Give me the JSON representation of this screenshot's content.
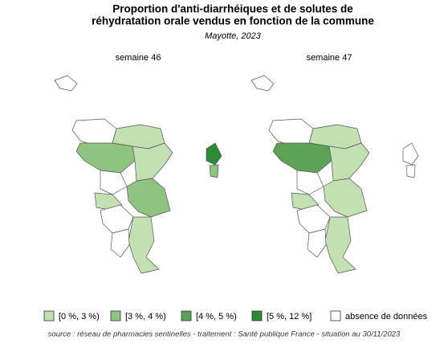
{
  "title_lines": [
    "Proportion d'anti-diarrhéiques et de solutes de",
    "réhydratation orale vendus en fonction de la commune"
  ],
  "subtitle": "Mayotte, 2023",
  "panels": [
    {
      "title": "semaine 46"
    },
    {
      "title": "semaine 47"
    }
  ],
  "legend": [
    {
      "label": "[0 %, 3 %)",
      "color": "#c2e0b2"
    },
    {
      "label": "[3 %, 4 %)",
      "color": "#8fc480"
    },
    {
      "label": "[4 %, 5 %)",
      "color": "#5da357"
    },
    {
      "label": "[5 %, 12 %]",
      "color": "#2d8a36"
    },
    {
      "label": "absence de données",
      "color": "#ffffff"
    }
  ],
  "source": "source : réseau de pharmacies sentinelles - traitement : Santé publique France - situation au 30/11/2023"
}
